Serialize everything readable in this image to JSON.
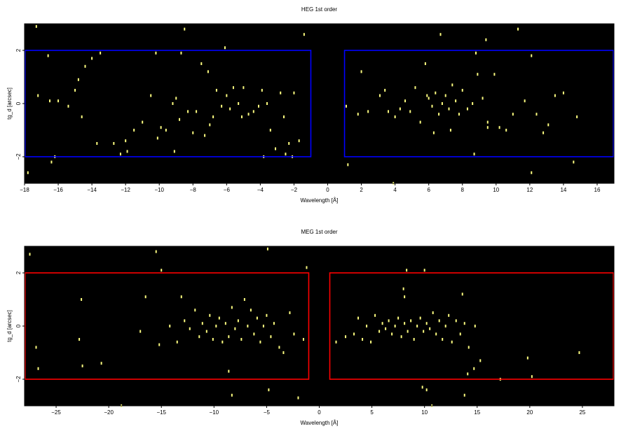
{
  "chart_data": [
    {
      "type": "scatter",
      "title": "HEG 1st order",
      "xlabel": "Wavelength [Å]",
      "ylabel": "tg_d [arcsec]",
      "xlim": [
        -18,
        17
      ],
      "ylim": [
        -3.0,
        3.0
      ],
      "xticks": [
        -18,
        -16,
        -14,
        -12,
        -10,
        -8,
        -6,
        -4,
        -2,
        0,
        2,
        4,
        6,
        8,
        10,
        12,
        14,
        16
      ],
      "xtick_labels": [
        "−18",
        "−16",
        "−14",
        "−12",
        "−10",
        "−8",
        "−6",
        "−4",
        "−2",
        "0",
        "2",
        "4",
        "6",
        "8",
        "10",
        "12",
        "14",
        "16"
      ],
      "yticks": [
        -2,
        0,
        2
      ],
      "ytick_labels": [
        "−2",
        "0",
        "2"
      ],
      "background": "#000000",
      "point_color": "#ffff80",
      "region_color": "#0000ff",
      "regions": [
        {
          "x": [
            -18,
            -1
          ],
          "y": [
            -2,
            2
          ]
        },
        {
          "x": [
            1,
            17
          ],
          "y": [
            -2,
            2
          ]
        }
      ],
      "points": [
        [
          -17.8,
          -2.6
        ],
        [
          -17.3,
          2.9
        ],
        [
          -17.2,
          0.3
        ],
        [
          -16.6,
          1.8
        ],
        [
          -16.5,
          0.1
        ],
        [
          -16.4,
          -2.2
        ],
        [
          -16.2,
          -2.0
        ],
        [
          -16.0,
          0.1
        ],
        [
          -15.4,
          -0.1
        ],
        [
          -15.0,
          0.5
        ],
        [
          -14.8,
          0.9
        ],
        [
          -14.6,
          -0.5
        ],
        [
          -14.4,
          1.4
        ],
        [
          -13.7,
          -1.5
        ],
        [
          -13.5,
          1.9
        ],
        [
          -12.7,
          -1.5
        ],
        [
          -12.3,
          -1.9
        ],
        [
          -11.9,
          -1.8
        ],
        [
          -11.5,
          -1.0
        ],
        [
          -11.0,
          -0.7
        ],
        [
          -10.5,
          0.3
        ],
        [
          -10.1,
          -1.3
        ],
        [
          -9.9,
          -0.9
        ],
        [
          -9.6,
          -1.0
        ],
        [
          -9.2,
          0.0
        ],
        [
          -9.0,
          0.2
        ],
        [
          -8.8,
          -0.6
        ],
        [
          -8.5,
          2.8
        ],
        [
          -8.3,
          -0.3
        ],
        [
          -8.0,
          -1.1
        ],
        [
          -7.8,
          -0.3
        ],
        [
          -7.5,
          1.5
        ],
        [
          -7.3,
          -1.2
        ],
        [
          -7.0,
          -0.8
        ],
        [
          -6.8,
          -0.5
        ],
        [
          -6.6,
          0.5
        ],
        [
          -6.3,
          -0.1
        ],
        [
          -6.0,
          0.3
        ],
        [
          -5.8,
          -0.2
        ],
        [
          -5.6,
          0.6
        ],
        [
          -5.3,
          0.0
        ],
        [
          -5.0,
          0.6
        ],
        [
          -4.7,
          -0.4
        ],
        [
          -4.4,
          -0.3
        ],
        [
          -4.1,
          -0.1
        ],
        [
          -3.9,
          0.5
        ],
        [
          -3.6,
          0.0
        ],
        [
          -3.4,
          -1.0
        ],
        [
          -3.1,
          -1.7
        ],
        [
          -2.8,
          0.4
        ],
        [
          -2.6,
          -0.5
        ],
        [
          -2.3,
          -1.5
        ],
        [
          -2.1,
          -2.0
        ],
        [
          -2.0,
          0.4
        ],
        [
          -1.7,
          -1.4
        ],
        [
          -1.4,
          2.6
        ],
        [
          -6.1,
          2.1
        ],
        [
          -8.7,
          1.9
        ],
        [
          -10.2,
          1.9
        ],
        [
          -12.0,
          -1.4
        ],
        [
          -14.0,
          1.7
        ],
        [
          -9.1,
          -1.8
        ],
        [
          -7.1,
          1.2
        ],
        [
          -5.1,
          -0.5
        ],
        [
          -3.8,
          -2.0
        ],
        [
          -2.5,
          -1.9
        ],
        [
          1.1,
          -0.1
        ],
        [
          1.2,
          -2.3
        ],
        [
          1.8,
          -0.4
        ],
        [
          2.0,
          1.2
        ],
        [
          2.4,
          -0.3
        ],
        [
          3.1,
          0.3
        ],
        [
          3.4,
          0.5
        ],
        [
          3.6,
          -0.3
        ],
        [
          3.9,
          -3.0
        ],
        [
          4.0,
          -0.5
        ],
        [
          4.3,
          -0.2
        ],
        [
          4.6,
          0.1
        ],
        [
          4.9,
          -0.3
        ],
        [
          5.2,
          0.6
        ],
        [
          5.5,
          -0.7
        ],
        [
          5.8,
          1.5
        ],
        [
          6.0,
          0.2
        ],
        [
          6.2,
          -0.1
        ],
        [
          6.4,
          0.4
        ],
        [
          6.6,
          -0.4
        ],
        [
          6.8,
          0.0
        ],
        [
          7.0,
          0.3
        ],
        [
          7.2,
          -0.2
        ],
        [
          7.4,
          0.7
        ],
        [
          7.6,
          0.1
        ],
        [
          7.8,
          -0.4
        ],
        [
          8.0,
          0.5
        ],
        [
          8.3,
          -0.2
        ],
        [
          8.6,
          0.0
        ],
        [
          8.9,
          1.1
        ],
        [
          9.2,
          0.2
        ],
        [
          9.5,
          -0.7
        ],
        [
          9.9,
          1.1
        ],
        [
          10.2,
          -0.9
        ],
        [
          10.6,
          -1.0
        ],
        [
          11.0,
          -0.4
        ],
        [
          11.3,
          2.8
        ],
        [
          11.7,
          0.1
        ],
        [
          12.1,
          1.8
        ],
        [
          12.4,
          -0.4
        ],
        [
          12.8,
          -1.1
        ],
        [
          13.1,
          -0.8
        ],
        [
          13.5,
          0.3
        ],
        [
          14.0,
          0.4
        ],
        [
          14.6,
          -2.2
        ],
        [
          14.8,
          -0.5
        ],
        [
          8.8,
          1.9
        ],
        [
          6.7,
          2.6
        ],
        [
          9.4,
          2.4
        ],
        [
          7.3,
          -1.0
        ],
        [
          8.7,
          -1.9
        ],
        [
          12.1,
          -2.6
        ],
        [
          9.5,
          -0.9
        ],
        [
          6.3,
          -1.1
        ],
        [
          5.9,
          0.3
        ]
      ]
    },
    {
      "type": "scatter",
      "title": "MEG 1st order",
      "xlabel": "Wavelength [Å]",
      "ylabel": "tg_d [arcsec]",
      "xlim": [
        -28,
        28
      ],
      "ylim": [
        -3.0,
        3.0
      ],
      "xticks": [
        -25,
        -20,
        -15,
        -10,
        -5,
        0,
        5,
        10,
        15,
        20,
        25
      ],
      "xtick_labels": [
        "−25",
        "−20",
        "−15",
        "−10",
        "−5",
        "0",
        "5",
        "10",
        "15",
        "20",
        "25"
      ],
      "yticks": [
        -2,
        0,
        2
      ],
      "ytick_labels": [
        "−2",
        "0",
        "2"
      ],
      "background": "#000000",
      "point_color": "#ffff80",
      "region_color": "#ff0000",
      "regions": [
        {
          "x": [
            -28,
            -1
          ],
          "y": [
            -2,
            2
          ]
        },
        {
          "x": [
            1,
            28
          ],
          "y": [
            -2,
            2
          ]
        }
      ],
      "points": [
        [
          -27.5,
          2.7
        ],
        [
          -26.9,
          -0.8
        ],
        [
          -26.7,
          -1.6
        ],
        [
          -22.6,
          1.0
        ],
        [
          -22.5,
          -1.5
        ],
        [
          -22.8,
          -0.5
        ],
        [
          -20.7,
          -1.4
        ],
        [
          -18.8,
          -3.0
        ],
        [
          -17.0,
          -0.2
        ],
        [
          -16.5,
          1.1
        ],
        [
          -15.5,
          2.8
        ],
        [
          -15.0,
          2.1
        ],
        [
          -15.2,
          -0.7
        ],
        [
          -14.2,
          0.0
        ],
        [
          -13.5,
          -0.6
        ],
        [
          -13.1,
          1.1
        ],
        [
          -12.8,
          0.2
        ],
        [
          -12.3,
          -0.1
        ],
        [
          -11.8,
          0.6
        ],
        [
          -11.4,
          -0.4
        ],
        [
          -11.1,
          0.1
        ],
        [
          -10.7,
          -0.2
        ],
        [
          -10.4,
          0.4
        ],
        [
          -10.1,
          -0.5
        ],
        [
          -9.8,
          0.0
        ],
        [
          -9.5,
          0.3
        ],
        [
          -9.2,
          -0.6
        ],
        [
          -8.9,
          0.1
        ],
        [
          -8.6,
          -0.4
        ],
        [
          -8.3,
          0.7
        ],
        [
          -8.0,
          -0.1
        ],
        [
          -7.7,
          0.2
        ],
        [
          -7.4,
          -0.5
        ],
        [
          -7.1,
          1.0
        ],
        [
          -6.8,
          0.0
        ],
        [
          -6.5,
          0.6
        ],
        [
          -6.2,
          -0.3
        ],
        [
          -5.9,
          0.3
        ],
        [
          -5.6,
          -0.6
        ],
        [
          -5.3,
          0.0
        ],
        [
          -5.0,
          0.4
        ],
        [
          -4.6,
          -0.4
        ],
        [
          -4.3,
          0.1
        ],
        [
          -3.8,
          -0.8
        ],
        [
          -3.4,
          -1.0
        ],
        [
          -2.8,
          0.5
        ],
        [
          -2.4,
          -0.3
        ],
        [
          -2.0,
          -2.7
        ],
        [
          -1.5,
          -0.5
        ],
        [
          -1.2,
          2.2
        ],
        [
          -4.9,
          2.9
        ],
        [
          -8.3,
          -2.6
        ],
        [
          -4.8,
          -2.4
        ],
        [
          -8.6,
          -1.7
        ],
        [
          1.6,
          -0.6
        ],
        [
          2.5,
          -0.4
        ],
        [
          3.3,
          -0.3
        ],
        [
          3.7,
          0.3
        ],
        [
          4.1,
          -0.5
        ],
        [
          4.5,
          0.0
        ],
        [
          4.9,
          -0.6
        ],
        [
          5.3,
          0.4
        ],
        [
          5.7,
          -0.2
        ],
        [
          6.0,
          0.1
        ],
        [
          6.3,
          -0.1
        ],
        [
          6.6,
          0.2
        ],
        [
          6.9,
          -0.3
        ],
        [
          7.2,
          0.0
        ],
        [
          7.5,
          0.3
        ],
        [
          7.8,
          -0.4
        ],
        [
          8.1,
          0.1
        ],
        [
          8.4,
          -0.2
        ],
        [
          8.7,
          0.2
        ],
        [
          9.0,
          -0.5
        ],
        [
          9.3,
          0.0
        ],
        [
          9.6,
          0.3
        ],
        [
          9.9,
          -0.2
        ],
        [
          10.2,
          0.1
        ],
        [
          10.5,
          -0.1
        ],
        [
          10.8,
          0.5
        ],
        [
          11.1,
          -0.3
        ],
        [
          11.4,
          0.2
        ],
        [
          11.7,
          -0.5
        ],
        [
          12.0,
          0.0
        ],
        [
          12.3,
          0.4
        ],
        [
          12.6,
          -0.6
        ],
        [
          13.0,
          0.2
        ],
        [
          13.4,
          -0.3
        ],
        [
          13.8,
          0.1
        ],
        [
          14.2,
          -0.8
        ],
        [
          14.8,
          0.0
        ],
        [
          15.3,
          -1.3
        ],
        [
          17.2,
          -2.0
        ],
        [
          19.8,
          -1.2
        ],
        [
          20.2,
          -1.9
        ],
        [
          24.7,
          -1.0
        ],
        [
          8.3,
          2.1
        ],
        [
          10.0,
          2.1
        ],
        [
          8.0,
          1.4
        ],
        [
          8.1,
          1.1
        ],
        [
          13.6,
          1.2
        ],
        [
          14.1,
          -1.8
        ],
        [
          14.7,
          -1.6
        ],
        [
          10.2,
          -2.4
        ],
        [
          13.8,
          -2.6
        ],
        [
          9.8,
          -2.3
        ],
        [
          10.7,
          -3.0
        ]
      ]
    }
  ]
}
